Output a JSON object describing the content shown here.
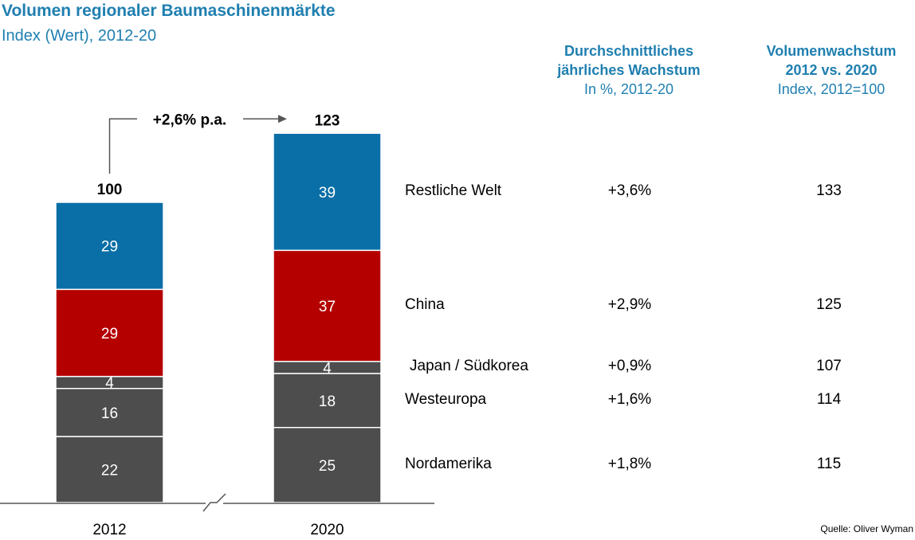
{
  "title": "Volumen regionaler Baumaschinenmärkte",
  "subtitle": "Index (Wert), 2012-20",
  "columns": {
    "growth": {
      "line1": "Durchschnittliches",
      "line2": "jährliches Wachstum",
      "sub": "In %, 2012-20"
    },
    "volume": {
      "line1": "Volumenwachstum",
      "line2": "2012 vs. 2020",
      "sub": "Index, 2012=100"
    }
  },
  "annotation": "+2,6% p.a.",
  "source": "Quelle: Oliver Wyman",
  "chart_data": {
    "type": "bar",
    "stacked": true,
    "categories": [
      "2012",
      "2020"
    ],
    "totals": [
      "100",
      "123"
    ],
    "series": [
      {
        "name": "Nordamerika",
        "values": [
          22,
          25
        ],
        "color": "#4d4d4d",
        "growth": "+1,8%",
        "index": "115"
      },
      {
        "name": "Westeuropa",
        "values": [
          16,
          18
        ],
        "color": "#4d4d4d",
        "growth": "+1,6%",
        "index": "114"
      },
      {
        "name": "Japan / Südkorea",
        "values": [
          4,
          4
        ],
        "color": "#4d4d4d",
        "growth": "+0,9%",
        "index": "107"
      },
      {
        "name": "China",
        "values": [
          29,
          37
        ],
        "color": "#b50000",
        "growth": "+2,9%",
        "index": "125"
      },
      {
        "name": "Restliche Welt",
        "values": [
          29,
          39
        ],
        "color": "#0a6fa6",
        "growth": "+3,6%",
        "index": "133"
      }
    ]
  }
}
